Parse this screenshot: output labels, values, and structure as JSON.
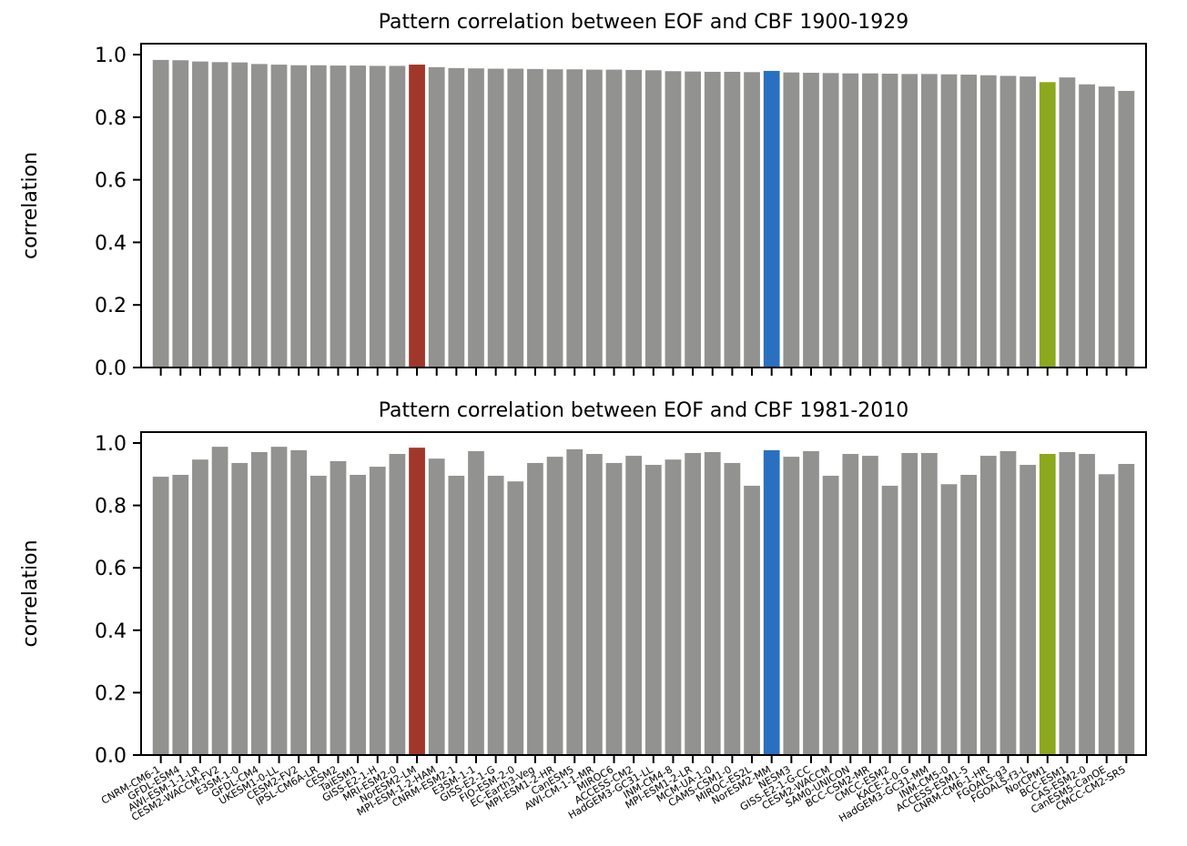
{
  "chart_data": [
    {
      "type": "bar",
      "title": "Pattern correlation between EOF and CBF 1900-1929",
      "ylabel": "correlation",
      "values": [
        0.983,
        0.982,
        0.978,
        0.976,
        0.975,
        0.97,
        0.968,
        0.966,
        0.966,
        0.965,
        0.965,
        0.964,
        0.964,
        0.968,
        0.96,
        0.957,
        0.956,
        0.955,
        0.955,
        0.954,
        0.953,
        0.953,
        0.952,
        0.952,
        0.951,
        0.95,
        0.947,
        0.946,
        0.945,
        0.945,
        0.944,
        0.948,
        0.943,
        0.942,
        0.941,
        0.94,
        0.94,
        0.939,
        0.938,
        0.938,
        0.937,
        0.936,
        0.934,
        0.932,
        0.93,
        0.912,
        0.927,
        0.905,
        0.898,
        0.884
      ],
      "colors": [
        "#929390",
        "#929390",
        "#929390",
        "#929390",
        "#929390",
        "#929390",
        "#929390",
        "#929390",
        "#929390",
        "#929390",
        "#929390",
        "#929390",
        "#929390",
        "#a0372a",
        "#929390",
        "#929390",
        "#929390",
        "#929390",
        "#929390",
        "#929390",
        "#929390",
        "#929390",
        "#929390",
        "#929390",
        "#929390",
        "#929390",
        "#929390",
        "#929390",
        "#929390",
        "#929390",
        "#929390",
        "#2a70c0",
        "#929390",
        "#929390",
        "#929390",
        "#929390",
        "#929390",
        "#929390",
        "#929390",
        "#929390",
        "#929390",
        "#929390",
        "#929390",
        "#929390",
        "#929390",
        "#8ca81c",
        "#929390",
        "#929390",
        "#929390",
        "#929390"
      ],
      "ylim": [
        0,
        1.035
      ],
      "yticks": [
        {
          "value": 0,
          "label": "0.0"
        },
        {
          "value": 0.2,
          "label": "0.2"
        },
        {
          "value": 0.4,
          "label": "0.4"
        },
        {
          "value": 0.6,
          "label": "0.6"
        },
        {
          "value": 0.8,
          "label": "0.8"
        },
        {
          "value": 1,
          "label": "1.0"
        }
      ]
    },
    {
      "type": "bar",
      "title": "Pattern correlation between EOF and CBF 1981-2010",
      "ylabel": "correlation",
      "categories": [
        "CNRM-CM6-1",
        "GFDL-ESM4",
        "AWI-ESM-1-1-LR",
        "CESM2-WACCM-FV2",
        "E3SM-1-0",
        "GFDL-CM4",
        "UKESM1-0-LL",
        "CESM2-FV2",
        "IPSL-CM6A-LR",
        "CESM2",
        "TaiESM1",
        "GISS-E2-1-H",
        "MRI-ESM2-0",
        "NorESM2-LM",
        "MPI-ESM-1-2-HAM",
        "CNRM-ESM2-1",
        "E3SM-1-1",
        "GISS-E2-1-G",
        "FIO-ESM-2-0",
        "EC-Earth3-Veg",
        "MPI-ESM1-2-HR",
        "CanESM5",
        "AWI-CM-1-1-MR",
        "MIROC6",
        "ACCESS-CM2",
        "HadGEM3-GC31-LL",
        "INM-CM4-8",
        "MPI-ESM1-2-LR",
        "MCM-UA-1-0",
        "CAMS-CSM1-0",
        "MIROC-ES2L",
        "NorESM2-MM",
        "NESM3",
        "GISS-E2-1-G-CC",
        "CESM2-WACCM",
        "SAM0-UNICON",
        "BCC-CSM2-MR",
        "CMCC-ESM2",
        "KACE-1-0-G",
        "HadGEM3-GC31-MM",
        "INM-CM5-0",
        "ACCESS-ESM1-5",
        "CNRM-CM6-1-HR",
        "FGOALS-g3",
        "FGOALS-f3-L",
        "NorCPM1",
        "BCC-ESM1",
        "CAS-ESM2-0",
        "CanESM5-CanOE",
        "CMCC-CM2-SR5"
      ],
      "values": [
        0.892,
        0.898,
        0.947,
        0.988,
        0.936,
        0.971,
        0.988,
        0.977,
        0.895,
        0.942,
        0.898,
        0.924,
        0.965,
        0.985,
        0.95,
        0.895,
        0.974,
        0.895,
        0.877,
        0.936,
        0.956,
        0.98,
        0.965,
        0.936,
        0.959,
        0.93,
        0.947,
        0.968,
        0.971,
        0.936,
        0.863,
        0.977,
        0.956,
        0.974,
        0.895,
        0.965,
        0.959,
        0.863,
        0.968,
        0.968,
        0.868,
        0.898,
        0.959,
        0.974,
        0.93,
        0.965,
        0.971,
        0.965,
        0.9,
        0.933
      ],
      "colors": [
        "#929390",
        "#929390",
        "#929390",
        "#929390",
        "#929390",
        "#929390",
        "#929390",
        "#929390",
        "#929390",
        "#929390",
        "#929390",
        "#929390",
        "#929390",
        "#a0372a",
        "#929390",
        "#929390",
        "#929390",
        "#929390",
        "#929390",
        "#929390",
        "#929390",
        "#929390",
        "#929390",
        "#929390",
        "#929390",
        "#929390",
        "#929390",
        "#929390",
        "#929390",
        "#929390",
        "#929390",
        "#2a70c0",
        "#929390",
        "#929390",
        "#929390",
        "#929390",
        "#929390",
        "#929390",
        "#929390",
        "#929390",
        "#929390",
        "#929390",
        "#929390",
        "#929390",
        "#929390",
        "#8ca81c",
        "#929390",
        "#929390",
        "#929390",
        "#929390"
      ],
      "ylim": [
        0,
        1.035
      ],
      "yticks": [
        {
          "value": 0,
          "label": "0.0"
        },
        {
          "value": 0.2,
          "label": "0.2"
        },
        {
          "value": 0.4,
          "label": "0.4"
        },
        {
          "value": 0.6,
          "label": "0.6"
        },
        {
          "value": 0.8,
          "label": "0.8"
        },
        {
          "value": 1,
          "label": "1.0"
        }
      ]
    }
  ]
}
